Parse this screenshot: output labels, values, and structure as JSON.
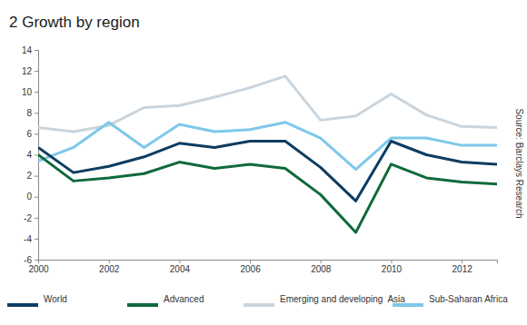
{
  "chart_data": {
    "type": "line",
    "title": "2 Growth by region",
    "x": [
      2000,
      2001,
      2002,
      2003,
      2004,
      2005,
      2006,
      2007,
      2008,
      2009,
      2010,
      2011,
      2012,
      2013
    ],
    "xlim": [
      2000,
      2013
    ],
    "xticks": [
      2000,
      2002,
      2004,
      2006,
      2008,
      2010,
      2012
    ],
    "ylim": [
      -6,
      14
    ],
    "yticks": [
      -6,
      -4,
      -2,
      0,
      2,
      4,
      6,
      8,
      10,
      12,
      14
    ],
    "grid": false,
    "legend": "bottom",
    "annotations": [
      "Source: Barclays Research"
    ],
    "series": [
      {
        "name": "World",
        "color": "#0d3c61",
        "values": [
          4.7,
          2.3,
          2.9,
          3.8,
          5.1,
          4.7,
          5.3,
          5.3,
          2.8,
          -0.4,
          5.3,
          4.0,
          3.3,
          3.1
        ]
      },
      {
        "name": "Advanced",
        "color": "#11693b",
        "values": [
          4.0,
          1.5,
          1.8,
          2.2,
          3.3,
          2.7,
          3.1,
          2.7,
          0.2,
          -3.4,
          3.1,
          1.8,
          1.4,
          1.2
        ]
      },
      {
        "name": "Emerging and developing  Asia",
        "color": "#c9d4dd",
        "values": [
          6.6,
          6.2,
          6.8,
          8.5,
          8.7,
          9.5,
          10.4,
          11.5,
          7.3,
          7.7,
          9.8,
          7.8,
          6.7,
          6.6
        ]
      },
      {
        "name": "Sub-Saharan Africa",
        "color": "#7ec8ea",
        "values": [
          3.4,
          4.7,
          7.1,
          4.7,
          6.9,
          6.2,
          6.4,
          7.1,
          5.6,
          2.6,
          5.6,
          5.6,
          4.9,
          4.9
        ]
      }
    ]
  }
}
